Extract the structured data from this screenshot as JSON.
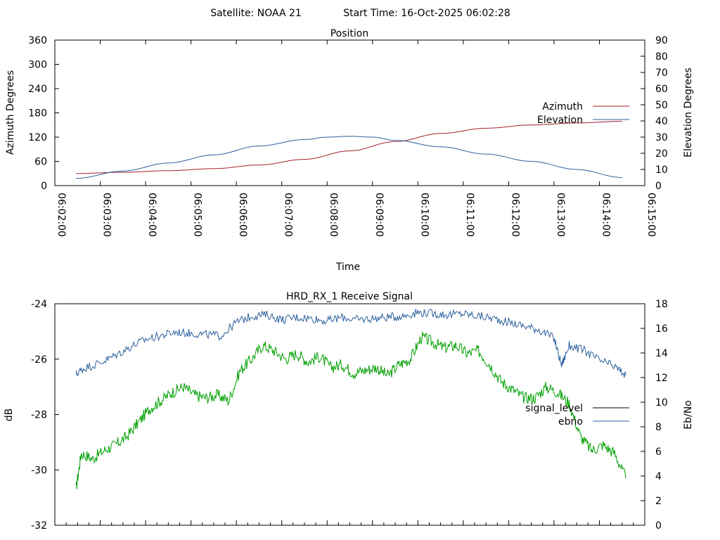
{
  "header": {
    "satellite_label": "Satellite: NOAA 21",
    "start_time_label": "Start Time: 16-Oct-2025 06:02:28"
  },
  "chart_data": [
    {
      "id": "position",
      "type": "line",
      "title": "Position",
      "xlabel": "Time",
      "ylabel": "Azimuth Degrees",
      "y2label": "Elevation Degrees",
      "x_range": [
        "06:02:00",
        "06:15:00"
      ],
      "x_ticks": [
        "06:02:00",
        "06:03:00",
        "06:04:00",
        "06:05:00",
        "06:06:00",
        "06:07:00",
        "06:08:00",
        "06:09:00",
        "06:10:00",
        "06:11:00",
        "06:12:00",
        "06:13:00",
        "06:14:00",
        "06:15:00"
      ],
      "ylim": [
        0,
        360
      ],
      "y_ticks": [
        0,
        60,
        120,
        180,
        240,
        300,
        360
      ],
      "y2lim": [
        0,
        90
      ],
      "y2_ticks": [
        0,
        10,
        20,
        30,
        40,
        50,
        60,
        70,
        80,
        90
      ],
      "legend_position": "right",
      "series": [
        {
          "name": "Azimuth",
          "axis": "left",
          "color": "#a6202a",
          "x": [
            "06:02:28",
            "06:03:30",
            "06:04:30",
            "06:05:30",
            "06:06:30",
            "06:07:30",
            "06:08:30",
            "06:09:30",
            "06:10:30",
            "06:11:30",
            "06:12:30",
            "06:13:30",
            "06:14:30"
          ],
          "y": [
            30,
            33,
            37,
            42,
            51,
            65,
            86,
            109,
            129,
            142,
            150,
            155,
            159
          ]
        },
        {
          "name": "Elevation",
          "axis": "right",
          "color": "#2b5f9e",
          "x": [
            "06:02:28",
            "06:03:30",
            "06:04:30",
            "06:05:30",
            "06:06:30",
            "06:07:30",
            "06:08:00",
            "06:08:30",
            "06:09:00",
            "06:09:30",
            "06:10:30",
            "06:11:30",
            "06:12:30",
            "06:13:30",
            "06:14:30"
          ],
          "y": [
            4.5,
            9,
            14,
            19,
            24.5,
            28.5,
            30,
            30.5,
            30,
            28,
            24,
            19.5,
            15,
            10,
            5
          ]
        }
      ]
    },
    {
      "id": "receive-signal",
      "type": "line",
      "title": "HRD_RX_1 Receive Signal",
      "ylabel": "dB",
      "y2label": "Eb/No",
      "x_range": [
        "06:02:00",
        "06:15:00"
      ],
      "ylim": [
        -32,
        -24
      ],
      "y_ticks": [
        -32,
        -30,
        -28,
        -26,
        -24
      ],
      "y2lim": [
        0,
        18
      ],
      "y2_ticks": [
        0,
        2,
        4,
        6,
        8,
        10,
        12,
        14,
        16,
        18
      ],
      "legend_position": "right",
      "legend_entries": [
        {
          "name": "signal_level",
          "color": "#000000"
        },
        {
          "name": "ebno",
          "color": "#2b5f9e"
        }
      ],
      "series": [
        {
          "name": "signal_level",
          "axis": "left",
          "color": "#00a000",
          "x": [
            "06:02:28",
            "06:02:35",
            "06:02:50",
            "06:03:05",
            "06:03:20",
            "06:03:35",
            "06:03:50",
            "06:04:05",
            "06:04:20",
            "06:04:35",
            "06:04:50",
            "06:05:05",
            "06:05:20",
            "06:05:35",
            "06:05:50",
            "06:06:05",
            "06:06:20",
            "06:06:35",
            "06:06:50",
            "06:07:05",
            "06:07:20",
            "06:07:35",
            "06:07:50",
            "06:08:05",
            "06:08:20",
            "06:08:35",
            "06:08:50",
            "06:09:05",
            "06:09:20",
            "06:09:35",
            "06:09:50",
            "06:10:05",
            "06:10:20",
            "06:10:35",
            "06:10:50",
            "06:11:05",
            "06:11:20",
            "06:11:35",
            "06:11:50",
            "06:12:05",
            "06:12:20",
            "06:12:35",
            "06:12:50",
            "06:13:05",
            "06:13:20",
            "06:13:35",
            "06:13:50",
            "06:14:05",
            "06:14:20",
            "06:14:35"
          ],
          "y": [
            -30.7,
            -29.4,
            -29.6,
            -29.3,
            -29.1,
            -28.8,
            -28.3,
            -27.8,
            -27.5,
            -27.2,
            -27.0,
            -27.3,
            -27.4,
            -27.3,
            -27.5,
            -26.4,
            -26.0,
            -25.5,
            -25.7,
            -26.0,
            -25.8,
            -26.1,
            -25.9,
            -26.3,
            -26.2,
            -26.5,
            -26.4,
            -26.3,
            -26.6,
            -26.2,
            -26.0,
            -25.2,
            -25.4,
            -25.6,
            -25.5,
            -25.8,
            -25.7,
            -26.2,
            -26.8,
            -27.1,
            -27.4,
            -27.4,
            -27.0,
            -27.2,
            -27.6,
            -28.8,
            -29.3,
            -29.1,
            -29.4,
            -30.3
          ]
        },
        {
          "name": "ebno",
          "axis": "right",
          "color": "#2b5f9e",
          "x": [
            "06:02:28",
            "06:02:40",
            "06:03:00",
            "06:03:20",
            "06:03:40",
            "06:04:00",
            "06:04:20",
            "06:04:40",
            "06:05:00",
            "06:05:20",
            "06:05:40",
            "06:06:00",
            "06:06:20",
            "06:06:40",
            "06:07:00",
            "06:07:20",
            "06:07:40",
            "06:08:00",
            "06:08:20",
            "06:08:40",
            "06:09:00",
            "06:09:20",
            "06:09:40",
            "06:10:00",
            "06:10:20",
            "06:10:40",
            "06:11:00",
            "06:11:20",
            "06:11:40",
            "06:12:00",
            "06:12:20",
            "06:12:40",
            "06:13:00",
            "06:13:10",
            "06:13:20",
            "06:13:40",
            "06:14:00",
            "06:14:20",
            "06:14:35"
          ],
          "y": [
            12.3,
            12.8,
            13.2,
            13.8,
            14.5,
            15.1,
            15.4,
            15.7,
            15.6,
            15.5,
            15.4,
            16.5,
            17.0,
            17.1,
            16.7,
            16.9,
            16.8,
            16.6,
            16.9,
            16.7,
            16.8,
            16.9,
            17.0,
            17.3,
            17.2,
            17.1,
            17.2,
            17.0,
            16.8,
            16.5,
            16.2,
            15.9,
            15.2,
            13.0,
            14.6,
            14.2,
            13.4,
            12.9,
            12.2
          ]
        }
      ]
    }
  ]
}
